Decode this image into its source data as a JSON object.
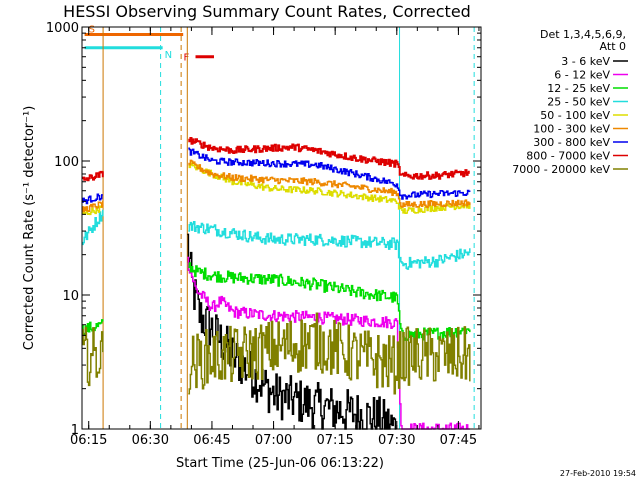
{
  "chart_data": {
    "type": "line",
    "title": "HESSI Observing Summary Count Rates, Corrected",
    "xlabel": "Start Time (25-Jun-06 06:13:22)",
    "ylabel": "Corrected Count Rate (s⁻¹ detector⁻¹)",
    "timestamp": "27-Feb-2010 19:54",
    "y_scale": "log",
    "ylim": [
      1,
      1000
    ],
    "y_ticks": [
      1,
      10,
      100,
      1000
    ],
    "y_tick_labels": [
      "1",
      "10",
      "100",
      "1000"
    ],
    "xlim": [
      "06:13:22",
      "07:50:30"
    ],
    "x_ticks": [
      "06:15",
      "06:30",
      "06:45",
      "07:00",
      "07:15",
      "07:30",
      "07:45"
    ],
    "legend": {
      "position": "top-right",
      "header": [
        "Det 1,3,4,5,6,9,",
        "Att 0"
      ]
    },
    "flag_bars": [
      {
        "label": "S",
        "color": "#ee6600",
        "start": "06:14:00",
        "end": "06:38:00",
        "level": 880
      },
      {
        "label": "N",
        "color": "#22dddd",
        "start": "06:14:00",
        "end": "06:33:00",
        "level": 700
      },
      {
        "label": "F",
        "color": "#dd0000",
        "start": "06:41:00",
        "end": "06:45:30",
        "level": 600
      }
    ],
    "markers": [
      {
        "time": "06:18:30",
        "color": "#cc7700",
        "style": "solid"
      },
      {
        "time": "06:32:30",
        "color": "#22dddd",
        "style": "dashed"
      },
      {
        "time": "06:37:30",
        "color": "#cc7700",
        "style": "dashed"
      },
      {
        "time": "06:39:00",
        "color": "#cc7700",
        "style": "solid"
      },
      {
        "time": "07:30:40",
        "color": "#22dddd",
        "style": "solid"
      },
      {
        "time": "07:48:50",
        "color": "#22dddd",
        "style": "dashed"
      }
    ],
    "data_gap": [
      "06:18:30",
      "06:39:00"
    ],
    "series": [
      {
        "name": "3 - 6 keV",
        "color": "#000000",
        "x": [
          "06:13:22",
          "06:18:30",
          "06:39:00",
          "06:40:00",
          "06:42:00",
          "06:45:00",
          "06:50:00",
          "06:55:00",
          "07:00:00",
          "07:10:00",
          "07:15:00",
          "07:20:00",
          "07:25:00",
          "07:30:00"
        ],
        "y": [
          null,
          null,
          25,
          12,
          7,
          5.5,
          3.5,
          2.5,
          1.8,
          1.5,
          1.4,
          1.3,
          1.2,
          1.0
        ]
      },
      {
        "name": "6 - 12 keV",
        "color": "#ee00ee",
        "x": [
          "06:39:00",
          "06:41:00",
          "06:43:00",
          "06:45:00",
          "06:47:00",
          "06:50:00",
          "06:55:00",
          "07:00:00",
          "07:10:00",
          "07:20:00",
          "07:30:00",
          "07:31:00",
          "07:35:00",
          "07:48:00"
        ],
        "y": [
          18,
          11,
          9.5,
          8,
          9,
          7.5,
          7.2,
          7,
          6.8,
          6.5,
          6.2,
          1.0,
          1.0,
          1.0
        ]
      },
      {
        "name": "12 - 25 keV",
        "color": "#00dd00",
        "x": [
          "06:13:22",
          "06:18:30",
          "06:39:00",
          "06:41:00",
          "06:45:00",
          "06:50:00",
          "07:00:00",
          "07:10:00",
          "07:20:00",
          "07:30:00",
          "07:31:00",
          "07:40:00",
          "07:48:00"
        ],
        "y": [
          5.5,
          6,
          17,
          15,
          14,
          13.5,
          13,
          12,
          10.5,
          9.5,
          5,
          5.2,
          5.5
        ]
      },
      {
        "name": "25 - 50 keV",
        "color": "#22dddd",
        "x": [
          "06:13:22",
          "06:18:30",
          "06:39:00",
          "06:45:00",
          "06:50:00",
          "06:55:00",
          "07:00:00",
          "07:10:00",
          "07:20:00",
          "07:30:00",
          "07:31:00",
          "07:40:00",
          "07:48:00"
        ],
        "y": [
          25,
          42,
          33,
          31,
          29,
          27,
          26,
          26,
          25,
          24,
          17,
          18,
          21
        ]
      },
      {
        "name": "50 - 100 keV",
        "color": "#dddd00",
        "x": [
          "06:13:22",
          "06:18:30",
          "06:39:00",
          "06:45:00",
          "06:50:00",
          "07:00:00",
          "07:10:00",
          "07:20:00",
          "07:30:00",
          "07:31:00",
          "07:40:00",
          "07:48:00"
        ],
        "y": [
          40,
          45,
          95,
          80,
          70,
          62,
          60,
          55,
          50,
          42,
          45,
          47
        ]
      },
      {
        "name": "100 - 300 keV",
        "color": "#ee8800",
        "x": [
          "06:13:22",
          "06:18:30",
          "06:39:00",
          "06:45:00",
          "06:50:00",
          "07:00:00",
          "07:10:00",
          "07:20:00",
          "07:30:00",
          "07:31:00",
          "07:40:00",
          "07:48:00"
        ],
        "y": [
          43,
          48,
          98,
          80,
          75,
          72,
          70,
          64,
          58,
          47,
          48,
          49
        ]
      },
      {
        "name": "300 - 800 keV",
        "color": "#0000ee",
        "x": [
          "06:13:22",
          "06:18:30",
          "06:39:00",
          "06:45:00",
          "06:50:00",
          "07:00:00",
          "07:10:00",
          "07:20:00",
          "07:30:00",
          "07:31:00",
          "07:40:00",
          "07:48:00"
        ],
        "y": [
          50,
          55,
          120,
          100,
          98,
          96,
          94,
          80,
          67,
          55,
          57,
          58
        ]
      },
      {
        "name": "800 - 7000 keV",
        "color": "#dd0000",
        "x": [
          "06:13:22",
          "06:18:30",
          "06:39:00",
          "06:45:00",
          "06:50:00",
          "07:00:00",
          "07:05:00",
          "07:10:00",
          "07:20:00",
          "07:30:00",
          "07:31:00",
          "07:40:00",
          "07:48:00"
        ],
        "y": [
          72,
          80,
          145,
          125,
          120,
          125,
          127,
          120,
          105,
          95,
          77,
          78,
          82
        ]
      },
      {
        "name": "7000 - 20000 keV",
        "color": "#808000",
        "x": [
          "06:13:22",
          "06:18:30",
          "06:39:00",
          "06:45:00",
          "06:50:00",
          "07:00:00",
          "07:10:00",
          "07:20:00",
          "07:30:00",
          "07:31:00",
          "07:40:00",
          "07:48:00"
        ],
        "y": [
          3.5,
          3.5,
          3,
          3.5,
          3.5,
          4,
          4.5,
          3.5,
          3,
          3.5,
          3.5,
          3.5
        ]
      }
    ]
  }
}
